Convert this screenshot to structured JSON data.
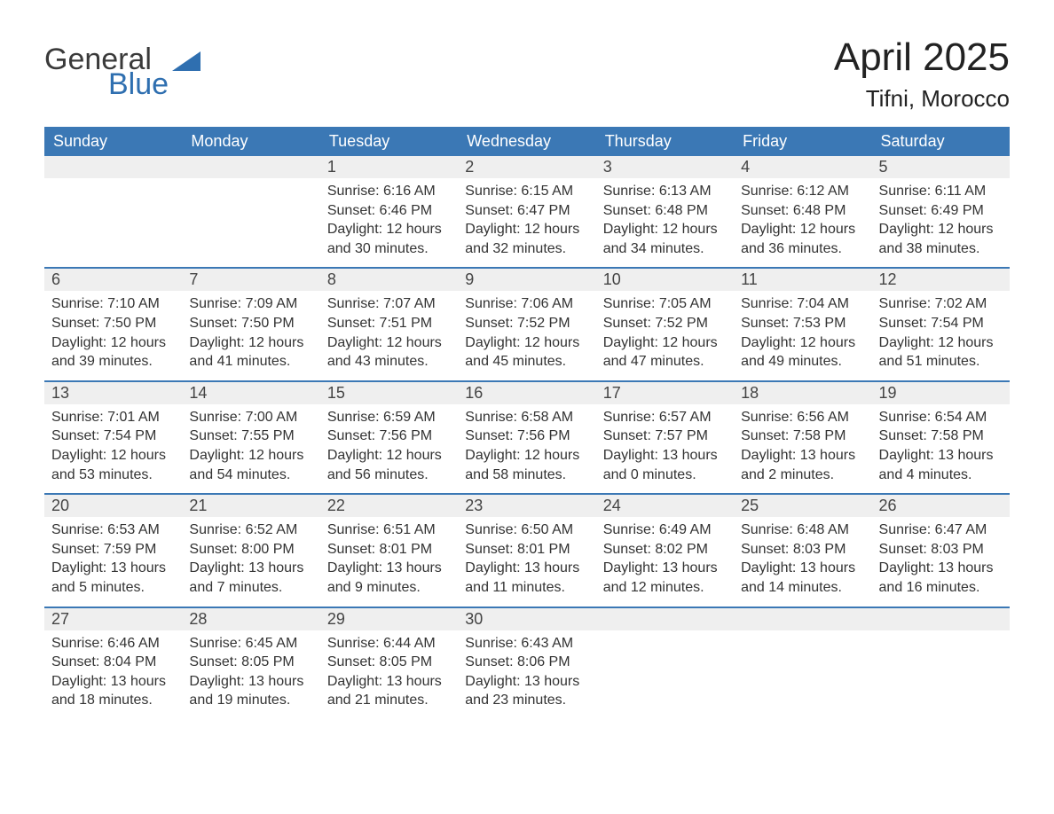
{
  "logo": {
    "word1": "General",
    "word2": "Blue",
    "shape_color": "#2f6fb0"
  },
  "title": "April 2025",
  "location": "Tifni, Morocco",
  "colors": {
    "header_bg": "#3b78b5",
    "header_text": "#ffffff",
    "daynum_bg": "#efefef",
    "separator": "#3b78b5",
    "body_text": "#333333",
    "page_bg": "#ffffff"
  },
  "typography": {
    "title_fontsize": 44,
    "location_fontsize": 26,
    "header_fontsize": 18,
    "daynum_fontsize": 18,
    "body_fontsize": 16
  },
  "day_headers": [
    "Sunday",
    "Monday",
    "Tuesday",
    "Wednesday",
    "Thursday",
    "Friday",
    "Saturday"
  ],
  "weeks": [
    [
      null,
      null,
      {
        "num": "1",
        "sunrise": "Sunrise: 6:16 AM",
        "sunset": "Sunset: 6:46 PM",
        "daylight": "Daylight: 12 hours and 30 minutes."
      },
      {
        "num": "2",
        "sunrise": "Sunrise: 6:15 AM",
        "sunset": "Sunset: 6:47 PM",
        "daylight": "Daylight: 12 hours and 32 minutes."
      },
      {
        "num": "3",
        "sunrise": "Sunrise: 6:13 AM",
        "sunset": "Sunset: 6:48 PM",
        "daylight": "Daylight: 12 hours and 34 minutes."
      },
      {
        "num": "4",
        "sunrise": "Sunrise: 6:12 AM",
        "sunset": "Sunset: 6:48 PM",
        "daylight": "Daylight: 12 hours and 36 minutes."
      },
      {
        "num": "5",
        "sunrise": "Sunrise: 6:11 AM",
        "sunset": "Sunset: 6:49 PM",
        "daylight": "Daylight: 12 hours and 38 minutes."
      }
    ],
    [
      {
        "num": "6",
        "sunrise": "Sunrise: 7:10 AM",
        "sunset": "Sunset: 7:50 PM",
        "daylight": "Daylight: 12 hours and 39 minutes."
      },
      {
        "num": "7",
        "sunrise": "Sunrise: 7:09 AM",
        "sunset": "Sunset: 7:50 PM",
        "daylight": "Daylight: 12 hours and 41 minutes."
      },
      {
        "num": "8",
        "sunrise": "Sunrise: 7:07 AM",
        "sunset": "Sunset: 7:51 PM",
        "daylight": "Daylight: 12 hours and 43 minutes."
      },
      {
        "num": "9",
        "sunrise": "Sunrise: 7:06 AM",
        "sunset": "Sunset: 7:52 PM",
        "daylight": "Daylight: 12 hours and 45 minutes."
      },
      {
        "num": "10",
        "sunrise": "Sunrise: 7:05 AM",
        "sunset": "Sunset: 7:52 PM",
        "daylight": "Daylight: 12 hours and 47 minutes."
      },
      {
        "num": "11",
        "sunrise": "Sunrise: 7:04 AM",
        "sunset": "Sunset: 7:53 PM",
        "daylight": "Daylight: 12 hours and 49 minutes."
      },
      {
        "num": "12",
        "sunrise": "Sunrise: 7:02 AM",
        "sunset": "Sunset: 7:54 PM",
        "daylight": "Daylight: 12 hours and 51 minutes."
      }
    ],
    [
      {
        "num": "13",
        "sunrise": "Sunrise: 7:01 AM",
        "sunset": "Sunset: 7:54 PM",
        "daylight": "Daylight: 12 hours and 53 minutes."
      },
      {
        "num": "14",
        "sunrise": "Sunrise: 7:00 AM",
        "sunset": "Sunset: 7:55 PM",
        "daylight": "Daylight: 12 hours and 54 minutes."
      },
      {
        "num": "15",
        "sunrise": "Sunrise: 6:59 AM",
        "sunset": "Sunset: 7:56 PM",
        "daylight": "Daylight: 12 hours and 56 minutes."
      },
      {
        "num": "16",
        "sunrise": "Sunrise: 6:58 AM",
        "sunset": "Sunset: 7:56 PM",
        "daylight": "Daylight: 12 hours and 58 minutes."
      },
      {
        "num": "17",
        "sunrise": "Sunrise: 6:57 AM",
        "sunset": "Sunset: 7:57 PM",
        "daylight": "Daylight: 13 hours and 0 minutes."
      },
      {
        "num": "18",
        "sunrise": "Sunrise: 6:56 AM",
        "sunset": "Sunset: 7:58 PM",
        "daylight": "Daylight: 13 hours and 2 minutes."
      },
      {
        "num": "19",
        "sunrise": "Sunrise: 6:54 AM",
        "sunset": "Sunset: 7:58 PM",
        "daylight": "Daylight: 13 hours and 4 minutes."
      }
    ],
    [
      {
        "num": "20",
        "sunrise": "Sunrise: 6:53 AM",
        "sunset": "Sunset: 7:59 PM",
        "daylight": "Daylight: 13 hours and 5 minutes."
      },
      {
        "num": "21",
        "sunrise": "Sunrise: 6:52 AM",
        "sunset": "Sunset: 8:00 PM",
        "daylight": "Daylight: 13 hours and 7 minutes."
      },
      {
        "num": "22",
        "sunrise": "Sunrise: 6:51 AM",
        "sunset": "Sunset: 8:01 PM",
        "daylight": "Daylight: 13 hours and 9 minutes."
      },
      {
        "num": "23",
        "sunrise": "Sunrise: 6:50 AM",
        "sunset": "Sunset: 8:01 PM",
        "daylight": "Daylight: 13 hours and 11 minutes."
      },
      {
        "num": "24",
        "sunrise": "Sunrise: 6:49 AM",
        "sunset": "Sunset: 8:02 PM",
        "daylight": "Daylight: 13 hours and 12 minutes."
      },
      {
        "num": "25",
        "sunrise": "Sunrise: 6:48 AM",
        "sunset": "Sunset: 8:03 PM",
        "daylight": "Daylight: 13 hours and 14 minutes."
      },
      {
        "num": "26",
        "sunrise": "Sunrise: 6:47 AM",
        "sunset": "Sunset: 8:03 PM",
        "daylight": "Daylight: 13 hours and 16 minutes."
      }
    ],
    [
      {
        "num": "27",
        "sunrise": "Sunrise: 6:46 AM",
        "sunset": "Sunset: 8:04 PM",
        "daylight": "Daylight: 13 hours and 18 minutes."
      },
      {
        "num": "28",
        "sunrise": "Sunrise: 6:45 AM",
        "sunset": "Sunset: 8:05 PM",
        "daylight": "Daylight: 13 hours and 19 minutes."
      },
      {
        "num": "29",
        "sunrise": "Sunrise: 6:44 AM",
        "sunset": "Sunset: 8:05 PM",
        "daylight": "Daylight: 13 hours and 21 minutes."
      },
      {
        "num": "30",
        "sunrise": "Sunrise: 6:43 AM",
        "sunset": "Sunset: 8:06 PM",
        "daylight": "Daylight: 13 hours and 23 minutes."
      },
      null,
      null,
      null
    ]
  ]
}
